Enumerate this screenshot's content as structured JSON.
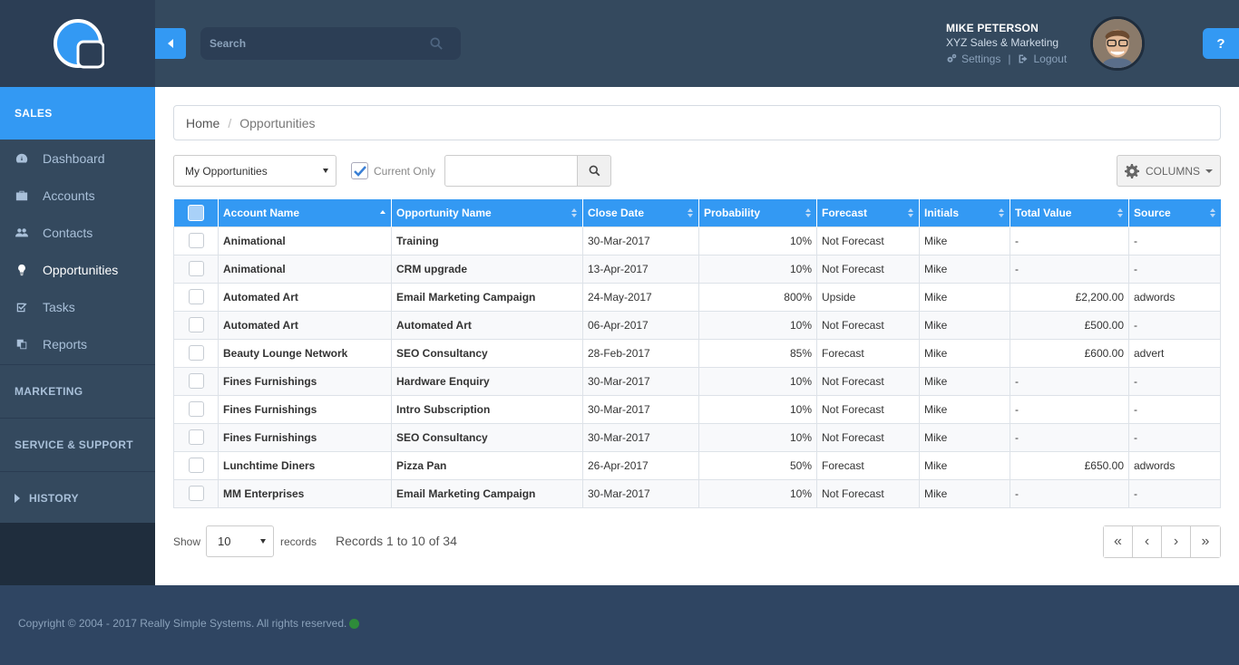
{
  "sidebar": {
    "section_label": "SALES",
    "items": [
      {
        "label": "Dashboard",
        "icon": "dashboard-icon"
      },
      {
        "label": "Accounts",
        "icon": "briefcase-icon"
      },
      {
        "label": "Contacts",
        "icon": "users-icon"
      },
      {
        "label": "Opportunities",
        "icon": "lightbulb-icon"
      },
      {
        "label": "Tasks",
        "icon": "checkbox-icon"
      },
      {
        "label": "Reports",
        "icon": "reports-icon"
      }
    ],
    "groups": [
      "MARKETING",
      "SERVICE & SUPPORT",
      "HISTORY"
    ]
  },
  "header": {
    "search_placeholder": "Search",
    "user_name": "MIKE PETERSON",
    "company": "XYZ Sales & Marketing",
    "settings_label": "Settings",
    "logout_label": "Logout",
    "link_separator": "|",
    "help_label": "?"
  },
  "breadcrumb": {
    "home": "Home",
    "separator": "/",
    "current": "Opportunities"
  },
  "toolbar": {
    "view_select": "My Opportunities",
    "current_only_label": "Current Only",
    "current_only_checked": true,
    "columns_label": "COLUMNS"
  },
  "table": {
    "headers": [
      "Account Name",
      "Opportunity Name",
      "Close Date",
      "Probability",
      "Forecast",
      "Initials",
      "Total Value",
      "Source"
    ],
    "rows": [
      [
        "Animational",
        "Training",
        "30-Mar-2017",
        "10%",
        "Not Forecast",
        "Mike",
        "-",
        "-"
      ],
      [
        "Animational",
        "CRM upgrade",
        "13-Apr-2017",
        "10%",
        "Not Forecast",
        "Mike",
        "-",
        "-"
      ],
      [
        "Automated Art",
        "Email Marketing Campaign",
        "24-May-2017",
        "800%",
        "Upside",
        "Mike",
        "£2,200.00",
        "adwords"
      ],
      [
        "Automated Art",
        "Automated Art",
        "06-Apr-2017",
        "10%",
        "Not Forecast",
        "Mike",
        "£500.00",
        "-"
      ],
      [
        "Beauty Lounge Network",
        "SEO Consultancy",
        "28-Feb-2017",
        "85%",
        "Forecast",
        "Mike",
        "£600.00",
        "advert"
      ],
      [
        "Fines Furnishings",
        "Hardware Enquiry",
        "30-Mar-2017",
        "10%",
        "Not Forecast",
        "Mike",
        "-",
        "-"
      ],
      [
        "Fines Furnishings",
        "Intro Subscription",
        "30-Mar-2017",
        "10%",
        "Not Forecast",
        "Mike",
        "-",
        "-"
      ],
      [
        "Fines Furnishings",
        "SEO Consultancy",
        "30-Mar-2017",
        "10%",
        "Not Forecast",
        "Mike",
        "-",
        "-"
      ],
      [
        "Lunchtime Diners",
        "Pizza Pan",
        "26-Apr-2017",
        "50%",
        "Forecast",
        "Mike",
        "£650.00",
        "adwords"
      ],
      [
        "MM Enterprises",
        "Email Marketing Campaign",
        "30-Mar-2017",
        "10%",
        "Not Forecast",
        "Mike",
        "-",
        "-"
      ]
    ]
  },
  "pager": {
    "show_label": "Show",
    "page_size": "10",
    "records_label": "records",
    "records_count": "Records 1 to 10 of 34",
    "buttons": [
      "«",
      "‹",
      "›",
      "»"
    ]
  },
  "footer": {
    "copyright": "Copyright © 2004 - 2017 Really Simple Systems. All rights reserved."
  },
  "colors": {
    "accent": "#3399f3",
    "sidebar": "#34495e",
    "footer": "#2f4562"
  }
}
